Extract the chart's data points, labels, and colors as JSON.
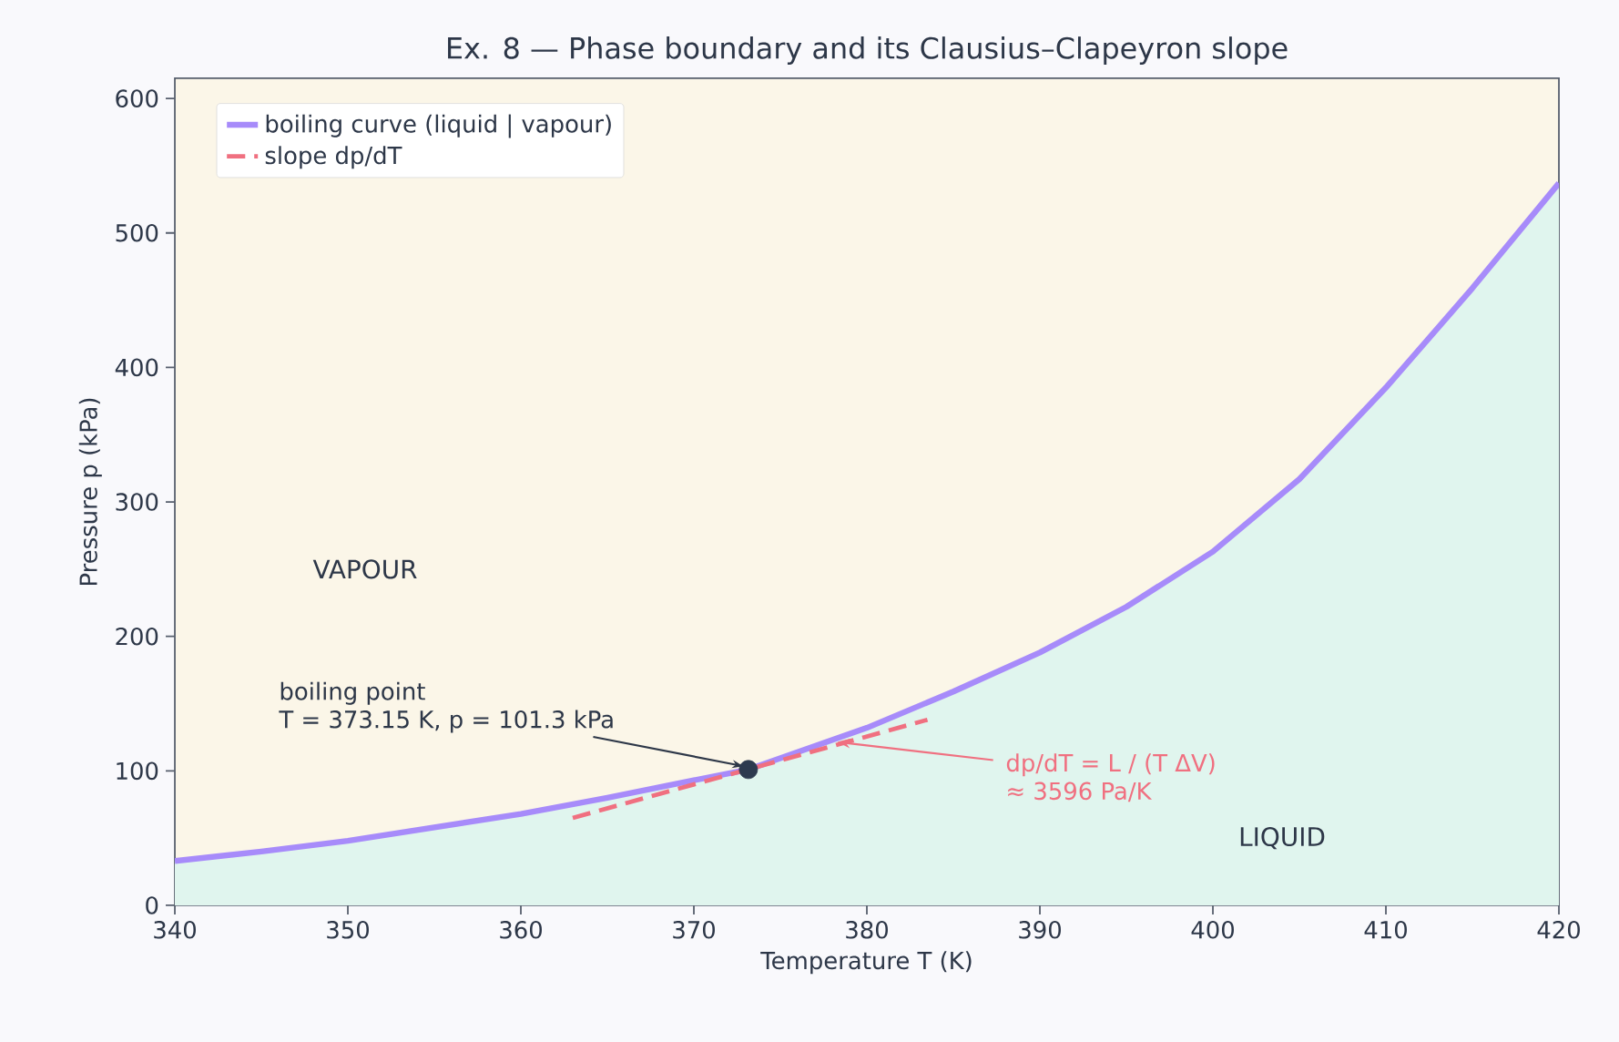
{
  "chart_data": {
    "type": "line",
    "title": "Ex. 8 — Phase boundary and its Clausius–Clapeyron slope",
    "xlabel": "Temperature  T  (K)",
    "ylabel": "Pressure  p  (kPa)",
    "series": [
      {
        "type": "area",
        "name": "boiling curve (liquid | vapour)",
        "color": "#a78bfa",
        "line_style": "solid",
        "x": [
          340,
          345,
          350,
          355,
          360,
          365,
          370,
          373.15,
          380,
          385,
          390,
          395,
          400,
          405,
          410,
          415,
          420
        ],
        "values": [
          33,
          40,
          48,
          58,
          68,
          80,
          93,
          101,
          132,
          159,
          188,
          222,
          263,
          317,
          385,
          459,
          537
        ]
      },
      {
        "name": "slope dp/dT",
        "color": "#f07080",
        "line_style": "dashed",
        "x": [
          363,
          383.5
        ],
        "values": [
          65,
          138
        ]
      },
      {
        "type": "scatter",
        "color": "#2d3a4f",
        "x": [
          373.15
        ],
        "values": [
          101
        ]
      }
    ],
    "annotations": [
      "boiling point",
      {
        "text": "T = 373.15 K, p = 101.3 kPa",
        "x": 373.15,
        "y": 101
      },
      {
        "text": "dp/dT = L / (T ΔV)",
        "x": 378,
        "y": 122
      },
      "≈ 3596 Pa/K",
      "VAPOUR",
      "LIQUID"
    ],
    "xlim": [
      340,
      420
    ],
    "ylim": [
      0,
      615
    ],
    "xticks": [
      340,
      350,
      360,
      370,
      380,
      390,
      400,
      410,
      420
    ],
    "yticks": [
      0,
      100,
      200,
      300,
      400,
      500,
      600
    ],
    "grid": false,
    "legend": "top left"
  }
}
